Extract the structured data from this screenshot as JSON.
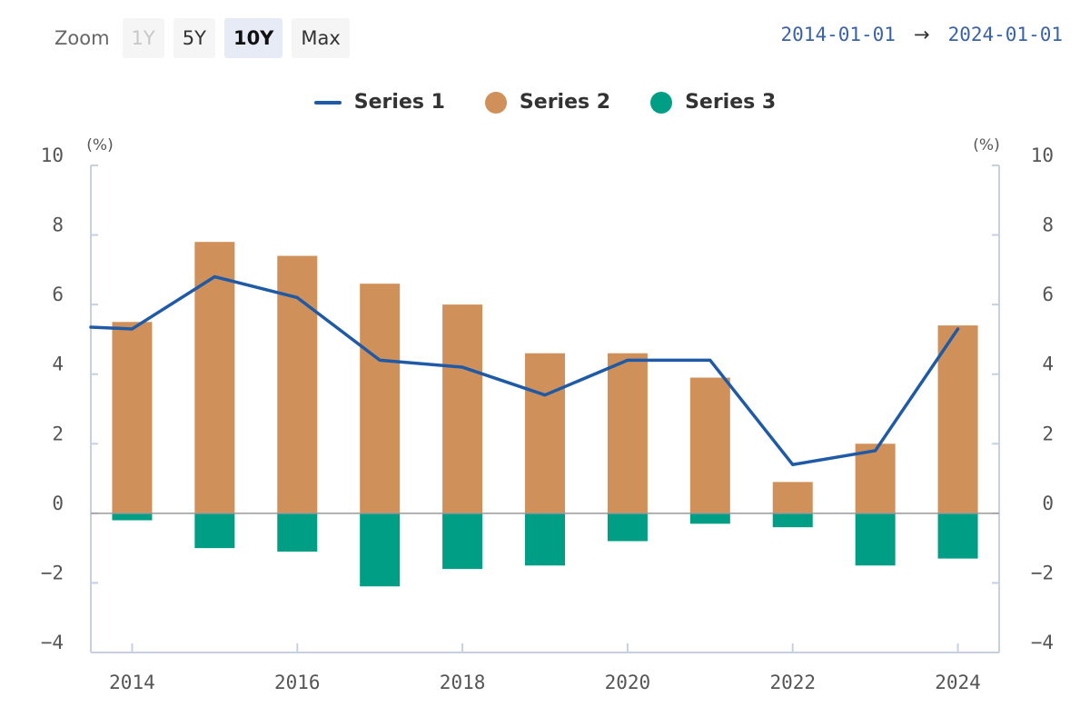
{
  "zoom": {
    "label": "Zoom",
    "buttons": [
      {
        "label": "1Y",
        "state": "disabled"
      },
      {
        "label": "5Y",
        "state": "normal"
      },
      {
        "label": "10Y",
        "state": "active"
      },
      {
        "label": "Max",
        "state": "normal"
      }
    ]
  },
  "range": {
    "from": "2014-01-01",
    "arrow": "→",
    "to": "2024-01-01"
  },
  "colors": {
    "series1": "#1f5aa6",
    "series2": "#d0905a",
    "series3": "#009e85",
    "axis": "#c6d0e0",
    "zero": "#999999"
  },
  "chart_data": {
    "type": "bar",
    "title": "",
    "x": [
      2014,
      2015,
      2016,
      2017,
      2018,
      2019,
      2020,
      2021,
      2022,
      2023,
      2024
    ],
    "x_ticks": [
      2014,
      2016,
      2018,
      2020,
      2022,
      2024
    ],
    "x_tick_labels": [
      "2014",
      "2016",
      "2018",
      "2020",
      "2022",
      "2024"
    ],
    "y_ticks": [
      -4,
      -2,
      0,
      2,
      4,
      6,
      8,
      10
    ],
    "y_tick_labels": [
      "−4",
      "−2",
      "0",
      "2",
      "4",
      "6",
      "8",
      "10"
    ],
    "ylim": [
      -4,
      10
    ],
    "y_unit_left": "(%)",
    "y_unit_right": "(%)",
    "legend": "top-center",
    "series": [
      {
        "name": "Series 1",
        "type": "line",
        "values": [
          5.3,
          6.8,
          6.2,
          4.4,
          4.2,
          3.4,
          4.4,
          4.4,
          1.4,
          1.8,
          5.3
        ],
        "line_start_value": 5.35
      },
      {
        "name": "Series 2",
        "type": "bar",
        "values": [
          5.5,
          7.8,
          7.4,
          6.6,
          6.0,
          4.6,
          4.6,
          3.9,
          0.9,
          2.0,
          5.4
        ]
      },
      {
        "name": "Series 3",
        "type": "bar",
        "values": [
          -0.2,
          -1.0,
          -1.1,
          -2.1,
          -1.6,
          -1.5,
          -0.8,
          -0.3,
          -0.4,
          -1.5,
          -1.3
        ]
      }
    ]
  }
}
